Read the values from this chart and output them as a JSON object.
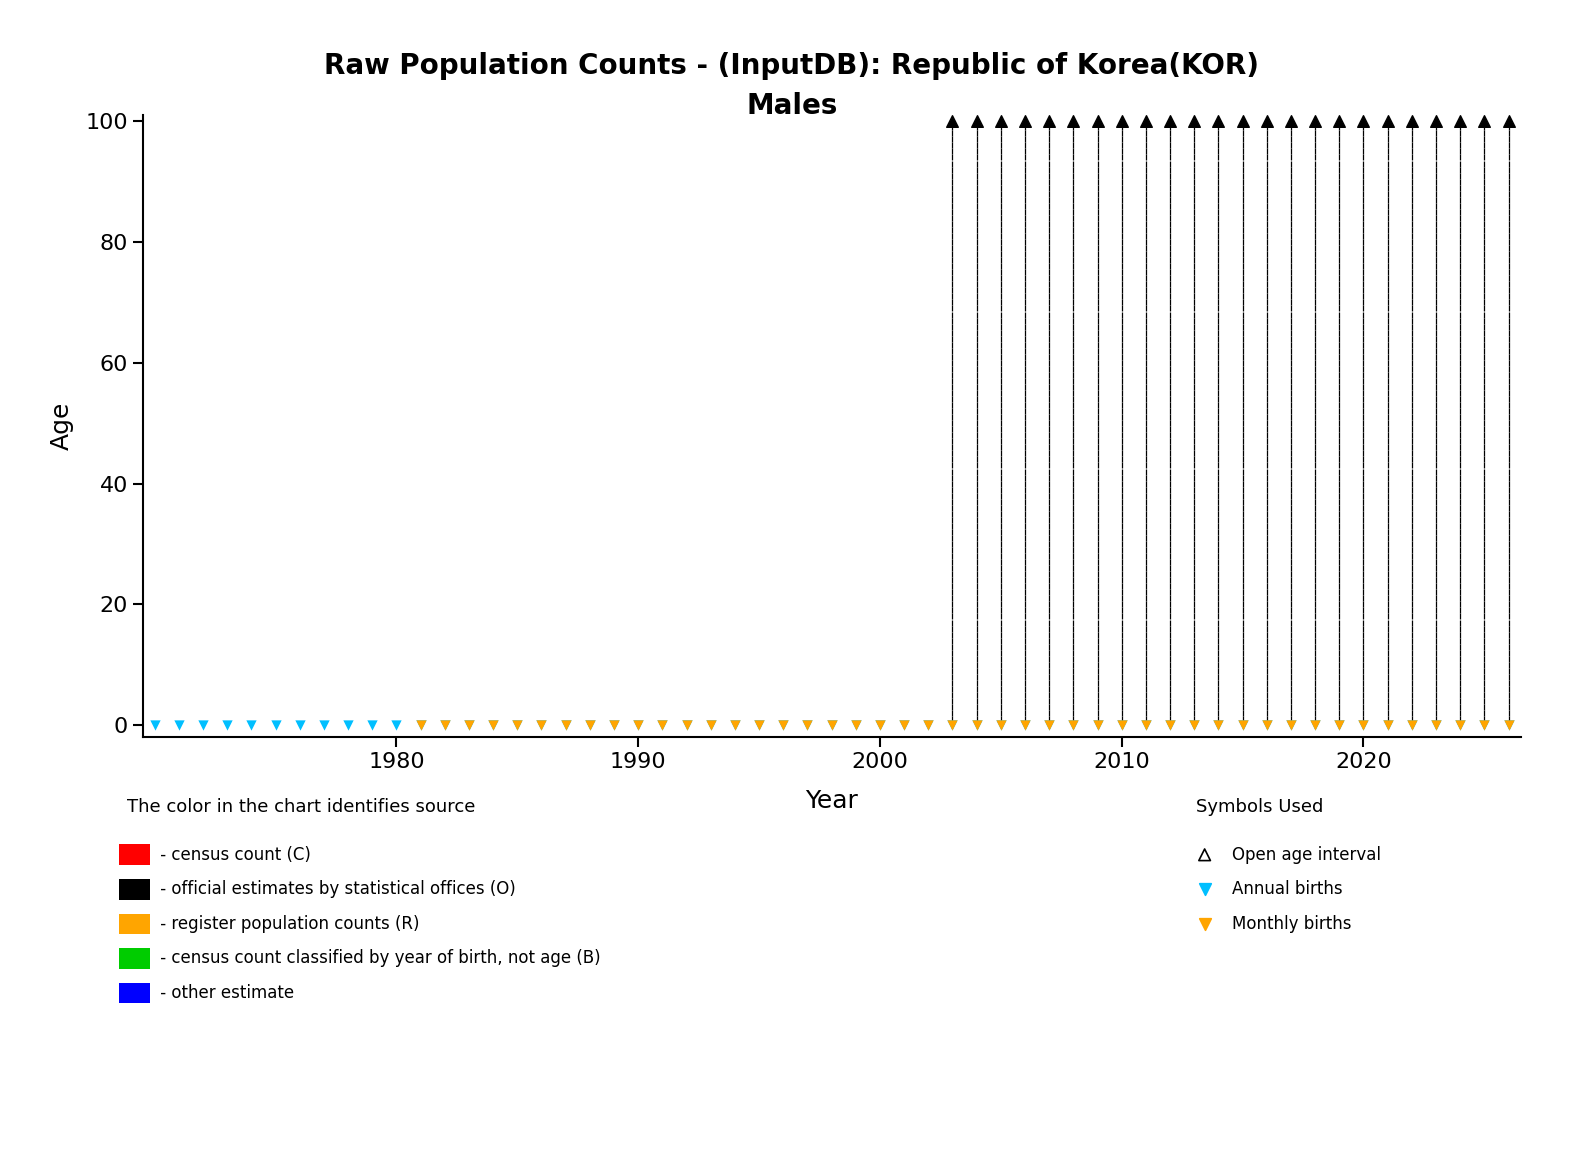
{
  "title_line1": "Raw Population Counts - (InputDB): Republic of Korea(KOR)",
  "title_line2": "Males",
  "xlabel": "Year",
  "ylabel": "Age",
  "xlim": [
    1969.5,
    2026.5
  ],
  "ylim": [
    -2,
    101
  ],
  "xticks": [
    1980,
    1990,
    2000,
    2010,
    2020
  ],
  "yticks": [
    0,
    20,
    40,
    60,
    80,
    100
  ],
  "annual_births_years_only": [
    1970,
    1971,
    1972,
    1973,
    1974,
    1975,
    1976,
    1977,
    1978,
    1979,
    1980
  ],
  "annual_births_years": [
    1970,
    1971,
    1972,
    1973,
    1974,
    1975,
    1976,
    1977,
    1978,
    1979,
    1980,
    1981,
    1982,
    1983,
    1984,
    1985,
    1986,
    1987,
    1988,
    1989,
    1990,
    1991,
    1992,
    1993,
    1994,
    1995,
    1996,
    1997,
    1998,
    1999,
    2000,
    2001,
    2002
  ],
  "monthly_births_years": [
    1981,
    1982,
    1983,
    1984,
    1985,
    1986,
    1987,
    1988,
    1989,
    1990,
    1991,
    1992,
    1993,
    1994,
    1995,
    1996,
    1997,
    1998,
    1999,
    2000,
    2001,
    2002
  ],
  "full_data_years": [
    2003,
    2004,
    2005,
    2006,
    2007,
    2008,
    2009,
    2010,
    2011,
    2012,
    2013,
    2014,
    2015,
    2016,
    2017,
    2018,
    2019,
    2020,
    2021,
    2022,
    2023,
    2024,
    2025,
    2026
  ],
  "color_annual_births": "#00BFFF",
  "color_monthly_births": "#FFA500",
  "color_black": "#000000",
  "legend_colors": [
    [
      "#FF0000",
      " - census count (C)"
    ],
    [
      "#000000",
      " - official estimates by statistical offices (O)"
    ],
    [
      "#FFA500",
      " - register population counts (R)"
    ],
    [
      "#00CC00",
      " - census count classified by year of birth, not age (B)"
    ],
    [
      "#0000FF",
      " - other estimate"
    ]
  ],
  "bg_color": "#FFFFFF",
  "title_fontsize": 20,
  "axis_label_fontsize": 18,
  "tick_fontsize": 16,
  "legend_fontsize": 12
}
